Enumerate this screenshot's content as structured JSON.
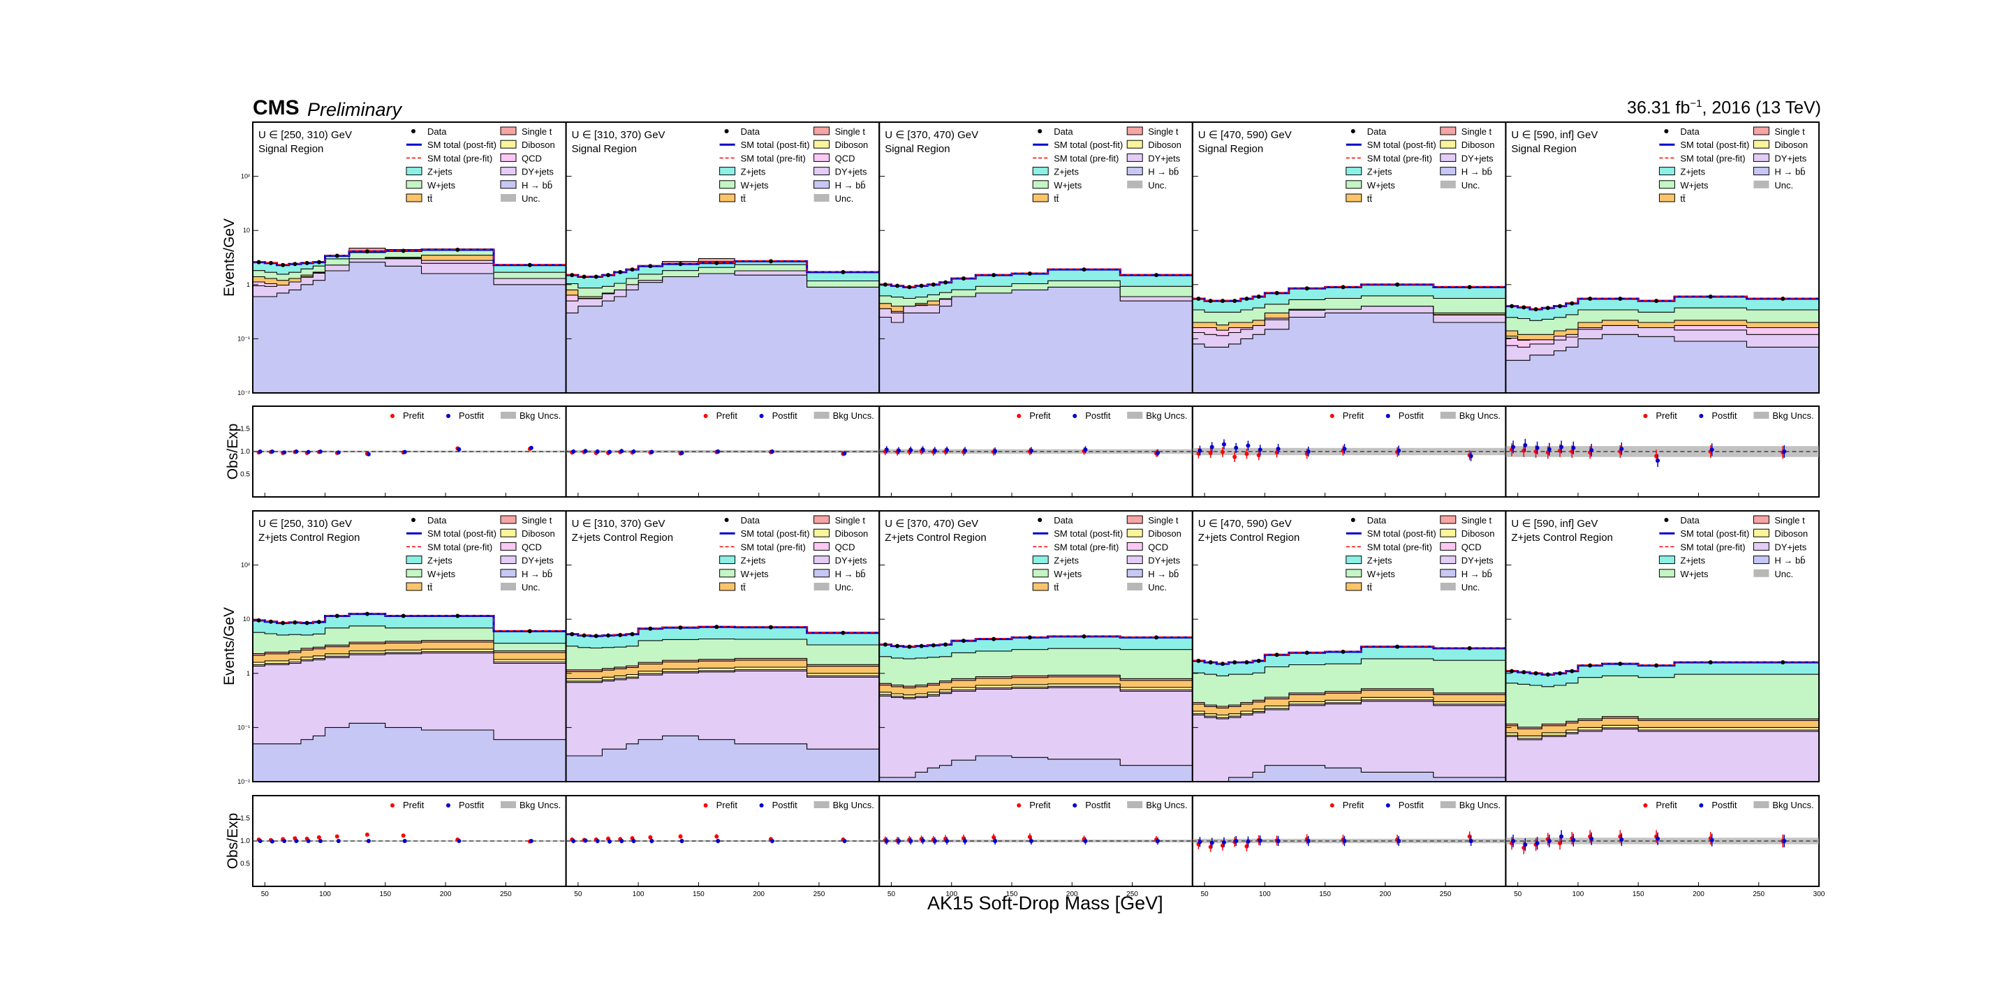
{
  "header": {
    "experiment": "CMS",
    "status": "Preliminary",
    "lumi_value": "36.31 fb",
    "lumi_exponent": "−1",
    "lumi_suffix": ", 2016 (13 TeV)"
  },
  "axes": {
    "x_title": "AK15 Soft-Drop Mass [GeV]",
    "y_title_main": "Events/GeV",
    "y_title_ratio": "Obs/Exp",
    "x_ticks": [
      "50",
      "100",
      "150",
      "200",
      "250",
      "300"
    ],
    "x_tick_values": [
      50,
      100,
      150,
      200,
      250,
      300
    ],
    "y_ticks_main": [
      "10⁻²",
      "10⁻¹",
      "1",
      "10",
      "10²"
    ],
    "y_tick_values_main": [
      0.01,
      0.1,
      1,
      10,
      100
    ],
    "y_ticks_ratio": [
      "0.5",
      "1.0",
      "1.5"
    ],
    "y_tick_values_ratio": [
      0.5,
      1.0,
      1.5
    ]
  },
  "legend_labels": {
    "data": "Data",
    "postfit_line": "SM total (post-fit)",
    "prefit_line": "SM total (pre-fit)",
    "zjets": "Z+jets",
    "wjets": "W+jets",
    "ttbar": "tt̄",
    "singlet": "Single t",
    "diboson": "Diboson",
    "qcd": "QCD",
    "dyjets": "DY+jets",
    "hbb": "H → bb̄",
    "unc": "Unc.",
    "prefit": "Prefit",
    "postfit": "Postfit",
    "bkg_unc": "Bkg Uncs."
  },
  "colors": {
    "zjets": "#8cf0e6",
    "wjets": "#c4f5c4",
    "ttbar": "#fcc46a",
    "singlet": "#f7a4a4",
    "diboson": "#fbf59a",
    "qcd": "#fbc8f4",
    "dyjets": "#e3ccf5",
    "hbb": "#c7c7f5",
    "postfit": "#0000cc",
    "prefit": "#ff0000",
    "unc": "#999999"
  },
  "chart_data": {
    "type": "area",
    "description_of_stack": "stacked step histograms on log y-axis, bins in AK15 soft-drop mass",
    "bin_edges": [
      40,
      50,
      60,
      70,
      80,
      90,
      100,
      120,
      150,
      180,
      240,
      300
    ],
    "ylim_main": [
      0.01,
      1000
    ],
    "ylim_ratio": [
      0,
      2
    ],
    "xlim": [
      40,
      300
    ],
    "rows": [
      {
        "region": "Signal Region",
        "recoil_bins": [
          "U ∈ [250, 310) GeV",
          "U ∈ [310, 370) GeV",
          "U ∈ [370, 470) GeV",
          "U ∈ [470, 590) GeV",
          "U ∈ [590, inf] GeV"
        ],
        "has_qcd": false,
        "has_singlet": true
      },
      {
        "region": "Z+jets Control Region",
        "recoil_bins": [
          "U ∈ [250, 310) GeV",
          "U ∈ [310, 370) GeV",
          "U ∈ [370, 470) GeV",
          "U ∈ [470, 590) GeV",
          "U ∈ [590, inf] GeV"
        ],
        "has_qcd": true,
        "has_singlet": true
      }
    ],
    "panels": [
      {
        "row": 0,
        "col": 0,
        "total": [
          2.6,
          2.5,
          2.3,
          2.4,
          2.5,
          2.6,
          3.4,
          4.1,
          4.2,
          4.4,
          2.3
        ],
        "tt": [
          1.4,
          1.3,
          1.2,
          1.3,
          1.5,
          1.7,
          2.3,
          3.0,
          3.2,
          3.5,
          1.3
        ],
        "hbb": [
          0.6,
          0.6,
          0.7,
          0.8,
          1.0,
          1.2,
          1.8,
          2.6,
          2.2,
          1.6,
          1.0
        ]
      },
      {
        "row": 0,
        "col": 1,
        "total": [
          1.5,
          1.4,
          1.4,
          1.5,
          1.7,
          1.9,
          2.2,
          2.4,
          2.5,
          2.7,
          1.7
        ],
        "tt": [
          0.8,
          0.6,
          0.6,
          0.7,
          0.8,
          1.0,
          1.2,
          1.4,
          1.6,
          1.8,
          0.9
        ],
        "hbb": [
          0.3,
          0.4,
          0.4,
          0.5,
          0.6,
          0.8,
          1.1,
          1.7,
          1.9,
          1.5,
          0.9
        ]
      },
      {
        "row": 0,
        "col": 2,
        "total": [
          1.0,
          0.95,
          0.9,
          0.95,
          1.0,
          1.1,
          1.3,
          1.5,
          1.6,
          1.9,
          1.5
        ],
        "tt": [
          0.45,
          0.4,
          0.4,
          0.45,
          0.5,
          0.55,
          0.6,
          0.7,
          0.8,
          0.9,
          0.6
        ],
        "hbb": [
          0.25,
          0.2,
          0.3,
          0.3,
          0.3,
          0.4,
          0.6,
          0.8,
          1.0,
          0.9,
          0.5
        ]
      },
      {
        "row": 0,
        "col": 3,
        "total": [
          0.55,
          0.5,
          0.5,
          0.5,
          0.55,
          0.6,
          0.7,
          0.85,
          0.9,
          1.0,
          0.9
        ],
        "tt": [
          0.2,
          0.2,
          0.18,
          0.2,
          0.2,
          0.22,
          0.3,
          0.35,
          0.35,
          0.4,
          0.3
        ],
        "hbb": [
          0.08,
          0.07,
          0.07,
          0.08,
          0.1,
          0.12,
          0.15,
          0.25,
          0.3,
          0.3,
          0.2
        ]
      },
      {
        "row": 0,
        "col": 4,
        "total": [
          0.4,
          0.38,
          0.35,
          0.37,
          0.4,
          0.45,
          0.55,
          0.55,
          0.5,
          0.6,
          0.55
        ],
        "tt": [
          0.14,
          0.12,
          0.12,
          0.12,
          0.14,
          0.15,
          0.2,
          0.22,
          0.2,
          0.22,
          0.2
        ],
        "hbb": [
          0.04,
          0.04,
          0.05,
          0.05,
          0.06,
          0.07,
          0.1,
          0.12,
          0.11,
          0.09,
          0.07
        ]
      },
      {
        "row": 1,
        "col": 0,
        "total": [
          9.5,
          9.0,
          8.5,
          8.7,
          8.5,
          8.9,
          11.5,
          12.5,
          11.5,
          11.5,
          6.0
        ],
        "tt": [
          1.6,
          1.7,
          1.7,
          1.8,
          2.0,
          2.1,
          2.3,
          2.6,
          2.7,
          2.8,
          1.8
        ],
        "hbb": [
          0.05,
          0.05,
          0.05,
          0.05,
          0.06,
          0.07,
          0.1,
          0.12,
          0.1,
          0.09,
          0.06
        ]
      },
      {
        "row": 1,
        "col": 1,
        "total": [
          5.3,
          5.0,
          4.9,
          5.0,
          5.1,
          5.3,
          6.7,
          7.0,
          7.2,
          7.1,
          5.6
        ],
        "tt": [
          0.8,
          0.8,
          0.8,
          0.85,
          0.9,
          0.95,
          1.1,
          1.2,
          1.25,
          1.3,
          1.0
        ],
        "hbb": [
          0.03,
          0.03,
          0.03,
          0.04,
          0.04,
          0.05,
          0.06,
          0.07,
          0.06,
          0.05,
          0.04
        ]
      },
      {
        "row": 1,
        "col": 2,
        "total": [
          3.4,
          3.2,
          3.1,
          3.2,
          3.3,
          3.4,
          4.0,
          4.3,
          4.6,
          4.8,
          4.6
        ],
        "tt": [
          0.45,
          0.42,
          0.4,
          0.42,
          0.45,
          0.5,
          0.55,
          0.6,
          0.62,
          0.64,
          0.55
        ],
        "hbb": [
          0.012,
          0.012,
          0.012,
          0.015,
          0.018,
          0.02,
          0.025,
          0.03,
          0.028,
          0.026,
          0.02
        ]
      },
      {
        "row": 1,
        "col": 3,
        "total": [
          1.7,
          1.6,
          1.5,
          1.6,
          1.6,
          1.7,
          2.2,
          2.4,
          2.5,
          3.1,
          2.9
        ],
        "tt": [
          0.2,
          0.18,
          0.17,
          0.18,
          0.2,
          0.22,
          0.25,
          0.3,
          0.32,
          0.36,
          0.3
        ],
        "hbb": [
          0.01,
          0.01,
          0.01,
          0.012,
          0.012,
          0.015,
          0.02,
          0.02,
          0.018,
          0.015,
          0.012
        ]
      },
      {
        "row": 1,
        "col": 4,
        "total": [
          1.1,
          1.05,
          1.0,
          0.95,
          1.0,
          1.1,
          1.4,
          1.5,
          1.4,
          1.6,
          1.6
        ],
        "tt": [
          0.08,
          0.07,
          0.07,
          0.08,
          0.08,
          0.09,
          0.1,
          0.11,
          0.1,
          0.1,
          0.1
        ],
        "hbb": [
          0.005,
          0.005,
          0.005,
          0.005,
          0.006,
          0.006,
          0.007,
          0.008,
          0.008,
          0.007,
          0.006
        ]
      }
    ],
    "ratio_points": {
      "x": [
        45,
        55,
        65,
        75,
        85,
        95,
        110,
        135,
        165,
        210,
        270
      ],
      "signal_postfit": [
        [
          1.0,
          1.0,
          0.98,
          1.0,
          0.99,
          1.0,
          0.98,
          0.94,
          0.99,
          1.05,
          1.08
        ],
        [
          1.0,
          1.01,
          1.0,
          0.99,
          1.01,
          1.0,
          0.99,
          0.97,
          1.0,
          1.0,
          0.96
        ],
        [
          1.04,
          1.02,
          1.03,
          1.04,
          1.02,
          1.03,
          1.02,
          1.01,
          1.02,
          1.04,
          0.97
        ],
        [
          1.02,
          1.1,
          1.16,
          1.08,
          1.13,
          1.04,
          1.06,
          1.0,
          1.06,
          1.02,
          0.9
        ],
        [
          1.1,
          1.14,
          1.08,
          1.05,
          1.1,
          1.08,
          1.03,
          1.06,
          0.8,
          1.04,
          1.0
        ]
      ],
      "signal_prefit": [
        [
          0.98,
          0.99,
          0.97,
          0.99,
          0.97,
          0.99,
          0.97,
          0.95,
          0.98,
          1.07,
          1.06
        ],
        [
          0.98,
          0.99,
          0.97,
          0.97,
          0.99,
          0.98,
          0.98,
          0.96,
          0.99,
          0.99,
          0.95
        ],
        [
          1.0,
          0.99,
          1.0,
          1.01,
          0.99,
          1.0,
          0.99,
          0.99,
          1.0,
          1.01,
          0.96
        ],
        [
          0.96,
          0.97,
          0.99,
          0.88,
          0.95,
          0.92,
          0.98,
          0.95,
          1.02,
          0.99,
          0.92
        ],
        [
          1.04,
          1.02,
          1.0,
          0.98,
          1.02,
          1.0,
          0.98,
          1.0,
          0.9,
          1.0,
          0.98
        ]
      ],
      "control_postfit": [
        [
          1.0,
          0.99,
          1.0,
          1.0,
          1.0,
          1.0,
          1.0,
          1.0,
          1.0,
          1.0,
          1.0
        ],
        [
          1.0,
          1.01,
          1.0,
          0.99,
          1.0,
          1.0,
          1.0,
          1.0,
          1.0,
          1.0,
          1.0
        ],
        [
          1.0,
          1.0,
          1.0,
          1.01,
          1.0,
          1.0,
          1.0,
          1.0,
          1.0,
          1.0,
          1.0
        ],
        [
          0.98,
          0.96,
          0.97,
          1.0,
          0.99,
          1.01,
          1.0,
          1.0,
          1.0,
          1.0,
          1.0
        ],
        [
          1.0,
          0.92,
          0.95,
          1.0,
          1.1,
          1.02,
          1.05,
          1.03,
          1.05,
          1.02,
          1.0
        ]
      ],
      "control_prefit": [
        [
          1.03,
          1.02,
          1.04,
          1.06,
          1.05,
          1.08,
          1.1,
          1.14,
          1.12,
          1.03,
          0.99
        ],
        [
          1.03,
          1.02,
          1.03,
          1.05,
          1.04,
          1.06,
          1.08,
          1.1,
          1.1,
          1.04,
          1.03
        ],
        [
          1.02,
          1.01,
          1.03,
          1.04,
          1.03,
          1.05,
          1.06,
          1.08,
          1.09,
          1.04,
          1.03
        ],
        [
          0.93,
          0.87,
          0.9,
          0.98,
          0.88,
          1.02,
          1.01,
          1.04,
          1.03,
          1.03,
          1.1
        ],
        [
          0.95,
          0.85,
          0.92,
          1.04,
          0.95,
          1.06,
          1.1,
          1.1,
          1.1,
          1.06,
          1.0
        ]
      ]
    }
  }
}
